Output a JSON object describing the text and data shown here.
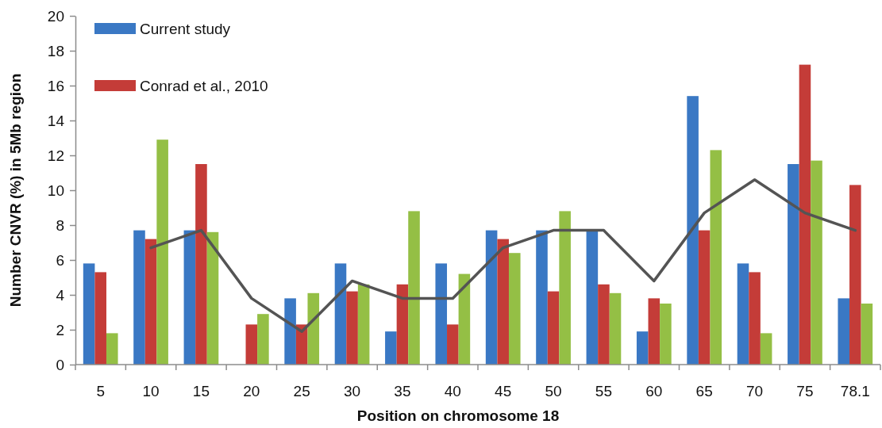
{
  "chart_data": {
    "type": "bar",
    "xlabel": "Position on chromosome 18",
    "ylabel": "Number CNVR (%) in 5Mb region",
    "categories": [
      "5",
      "10",
      "15",
      "20",
      "25",
      "30",
      "35",
      "40",
      "45",
      "50",
      "55",
      "60",
      "65",
      "70",
      "75",
      "78.1"
    ],
    "series": [
      {
        "name": "Current study",
        "color": "#3a78c4",
        "values": [
          5.8,
          7.7,
          7.7,
          null,
          3.8,
          5.8,
          1.9,
          5.8,
          7.7,
          7.7,
          7.7,
          1.9,
          15.4,
          5.8,
          11.5,
          3.8
        ]
      },
      {
        "name": "Conrad et al., 2010",
        "color": "#c43c38",
        "values": [
          5.3,
          7.2,
          11.5,
          2.3,
          2.3,
          4.2,
          4.6,
          2.3,
          7.2,
          4.2,
          4.6,
          3.8,
          7.7,
          5.3,
          17.2,
          10.3
        ]
      },
      {
        "color": "#94bf45",
        "values": [
          1.8,
          12.9,
          7.6,
          2.9,
          4.1,
          4.6,
          8.8,
          5.2,
          6.4,
          8.8,
          4.1,
          3.5,
          12.3,
          1.8,
          11.7,
          3.5
        ]
      },
      {
        "type": "line",
        "color": "#545454",
        "values": [
          null,
          6.7,
          7.7,
          3.8,
          1.9,
          4.8,
          3.8,
          3.8,
          6.7,
          7.7,
          7.7,
          4.8,
          8.7,
          10.6,
          8.7,
          7.7
        ]
      }
    ],
    "ylim": [
      0,
      20
    ],
    "yticks": [
      0,
      2,
      4,
      6,
      8,
      10,
      12,
      14,
      16,
      18,
      20
    ],
    "legend": "top left",
    "line_style": "solid"
  }
}
